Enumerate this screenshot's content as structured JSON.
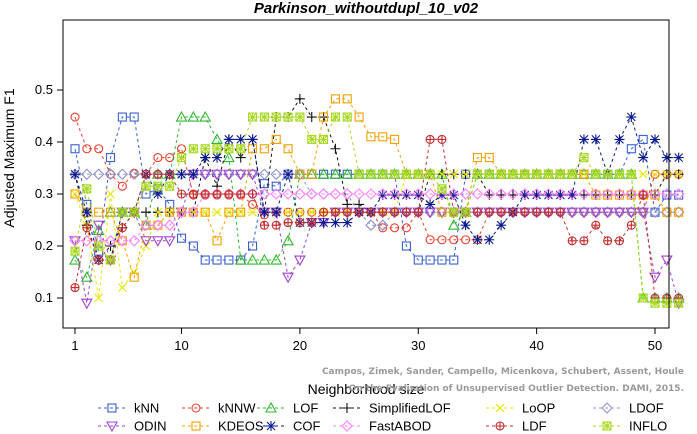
{
  "chart_data": {
    "type": "line",
    "title": "Parkinson_withoutdupl_10_v02",
    "xlabel": "Neighborhood size",
    "ylabel": "Adjusted Maximum F1",
    "xlim": [
      1,
      52
    ],
    "ylim": [
      0.08,
      0.5
    ],
    "xticks": [
      1,
      10,
      20,
      30,
      40,
      50
    ],
    "yticks": [
      0.1,
      0.2,
      0.3,
      0.4,
      0.5
    ],
    "grid": false,
    "legend_position": "bottom",
    "watermark_lines": [
      "Campos, Zimek, Sander, Campello, Micenkova, Schubert, Assent, Houle",
      "On the Evaluation of Unsupervised Outlier Detection. DAMI, 2015."
    ],
    "series": [
      {
        "name": "kNN",
        "color": "#3a5fcd",
        "marker": "square",
        "values": [
          0.387,
          0.28,
          0.19,
          0.37,
          0.448,
          0.448,
          0.3,
          0.31,
          0.28,
          0.215,
          0.2,
          0.173,
          0.173,
          0.173,
          0.173,
          0.2,
          0.32,
          0.315,
          0.338,
          0.338,
          0.338,
          0.338,
          0.338,
          0.338,
          0.338,
          0.338,
          0.338,
          0.338,
          0.2,
          0.173,
          0.173,
          0.173,
          0.173,
          0.338,
          0.338,
          0.338,
          0.338,
          0.338,
          0.338,
          0.338,
          0.338,
          0.338,
          0.338,
          0.338,
          0.338,
          0.338,
          0.338,
          0.387,
          0.405,
          0.265,
          0.298,
          0.298
        ]
      },
      {
        "name": "kNNW",
        "color": "#e8402d",
        "marker": "circle",
        "values": [
          0.448,
          0.387,
          0.387,
          0.338,
          0.315,
          0.34,
          0.338,
          0.37,
          0.37,
          0.387,
          0.298,
          0.298,
          0.298,
          0.298,
          0.298,
          0.28,
          0.26,
          0.265,
          0.265,
          0.265,
          0.265,
          0.265,
          0.265,
          0.265,
          0.265,
          0.265,
          0.235,
          0.235,
          0.235,
          0.265,
          0.212,
          0.212,
          0.212,
          0.212,
          0.212,
          0.265,
          0.265,
          0.265,
          0.265,
          0.265,
          0.265,
          0.265,
          0.265,
          0.265,
          0.265,
          0.265,
          0.265,
          0.265,
          0.265,
          0.338,
          0.338,
          0.338
        ]
      },
      {
        "name": "LOF",
        "color": "#2eb82e",
        "marker": "triangle-up",
        "values": [
          0.173,
          0.14,
          0.23,
          0.265,
          0.265,
          0.265,
          0.24,
          0.338,
          0.338,
          0.448,
          0.448,
          0.448,
          0.405,
          0.37,
          0.173,
          0.173,
          0.173,
          0.173,
          0.21,
          0.338,
          0.338,
          0.338,
          0.338,
          0.338,
          0.338,
          0.338,
          0.338,
          0.338,
          0.338,
          0.338,
          0.338,
          0.338,
          0.24,
          0.265,
          0.338,
          0.338,
          0.338,
          0.338,
          0.338,
          0.338,
          0.338,
          0.338,
          0.338,
          0.338,
          0.338,
          0.338,
          0.338,
          0.338,
          0.1,
          0.1,
          0.1,
          0.1
        ]
      },
      {
        "name": "SimplifiedLOF",
        "color": "#111111",
        "marker": "plus",
        "values": [
          0.338,
          0.24,
          0.173,
          0.2,
          0.235,
          0.265,
          0.265,
          0.265,
          0.265,
          0.265,
          0.265,
          0.37,
          0.315,
          0.405,
          0.37,
          0.405,
          0.265,
          0.448,
          0.448,
          0.483,
          0.448,
          0.448,
          0.387,
          0.28,
          0.28,
          0.265,
          0.265,
          0.265,
          0.265,
          0.265,
          0.338,
          0.338,
          0.338,
          0.338,
          0.338,
          0.298,
          0.298,
          0.298,
          0.298,
          0.298,
          0.298,
          0.298,
          0.298,
          0.298,
          0.298,
          0.298,
          0.298,
          0.298,
          0.298,
          0.298,
          0.338,
          0.338
        ]
      },
      {
        "name": "LoOP",
        "color": "#e6e600",
        "marker": "x",
        "values": [
          0.3,
          0.24,
          0.1,
          0.3,
          0.12,
          0.15,
          0.2,
          0.265,
          0.265,
          0.265,
          0.265,
          0.265,
          0.265,
          0.265,
          0.265,
          0.265,
          0.265,
          0.265,
          0.265,
          0.265,
          0.265,
          0.265,
          0.265,
          0.265,
          0.265,
          0.265,
          0.265,
          0.265,
          0.338,
          0.338,
          0.338,
          0.338,
          0.338,
          0.338,
          0.338,
          0.338,
          0.338,
          0.338,
          0.338,
          0.338,
          0.338,
          0.338,
          0.338,
          0.338,
          0.338,
          0.338,
          0.338,
          0.338,
          0.338,
          0.338,
          0.338,
          0.338
        ]
      },
      {
        "name": "LDOF",
        "color": "#9090cc",
        "marker": "diamond",
        "values": [
          0.338,
          0.338,
          0.338,
          0.338,
          0.338,
          0.338,
          0.338,
          0.338,
          0.338,
          0.338,
          0.338,
          0.338,
          0.338,
          0.338,
          0.338,
          0.338,
          0.338,
          0.338,
          0.338,
          0.338,
          0.3,
          0.3,
          0.3,
          0.3,
          0.265,
          0.24,
          0.24,
          0.265,
          0.265,
          0.265,
          0.265,
          0.265,
          0.265,
          0.265,
          0.265,
          0.265,
          0.265,
          0.265,
          0.265,
          0.265,
          0.265,
          0.265,
          0.265,
          0.265,
          0.265,
          0.265,
          0.265,
          0.265,
          0.265,
          0.265,
          0.265,
          0.265
        ]
      },
      {
        "name": "ODIN",
        "color": "#a040d0",
        "marker": "triangle-down",
        "values": [
          0.21,
          0.09,
          0.24,
          0.173,
          0.265,
          0.265,
          0.21,
          0.21,
          0.21,
          0.265,
          0.338,
          0.338,
          0.338,
          0.338,
          0.338,
          0.338,
          0.265,
          0.265,
          0.14,
          0.173,
          0.245,
          0.245,
          0.265,
          0.265,
          0.265,
          0.265,
          0.265,
          0.265,
          0.265,
          0.265,
          0.265,
          0.265,
          0.265,
          0.265,
          0.265,
          0.265,
          0.265,
          0.265,
          0.265,
          0.265,
          0.265,
          0.265,
          0.265,
          0.265,
          0.265,
          0.265,
          0.265,
          0.265,
          0.265,
          0.14,
          0.173,
          0.09
        ]
      },
      {
        "name": "KDEOS",
        "color": "#f0a000",
        "marker": "square",
        "values": [
          0.3,
          0.265,
          0.265,
          0.265,
          0.21,
          0.14,
          0.24,
          0.24,
          0.265,
          0.265,
          0.265,
          0.265,
          0.21,
          0.265,
          0.265,
          0.387,
          0.387,
          0.405,
          0.387,
          0.338,
          0.338,
          0.448,
          0.483,
          0.483,
          0.448,
          0.41,
          0.41,
          0.405,
          0.338,
          0.338,
          0.338,
          0.265,
          0.265,
          0.265,
          0.37,
          0.37,
          0.338,
          0.338,
          0.338,
          0.338,
          0.338,
          0.338,
          0.338,
          0.338,
          0.298,
          0.298,
          0.298,
          0.298,
          0.298,
          0.298,
          0.265,
          0.265
        ]
      },
      {
        "name": "COF",
        "color": "#0a1a8c",
        "marker": "asterisk",
        "values": [
          0.338,
          0.265,
          0.173,
          0.173,
          0.265,
          0.265,
          0.338,
          0.3,
          0.338,
          0.338,
          0.338,
          0.37,
          0.37,
          0.405,
          0.405,
          0.405,
          0.265,
          0.265,
          0.338,
          0.245,
          0.245,
          0.245,
          0.245,
          0.245,
          0.265,
          0.265,
          0.298,
          0.298,
          0.298,
          0.298,
          0.28,
          0.298,
          0.298,
          0.24,
          0.212,
          0.212,
          0.24,
          0.265,
          0.298,
          0.298,
          0.298,
          0.298,
          0.298,
          0.405,
          0.405,
          0.338,
          0.405,
          0.448,
          0.37,
          0.405,
          0.37,
          0.37
        ]
      },
      {
        "name": "FastABOD",
        "color": "#ff80ff",
        "marker": "diamond",
        "values": [
          0.21,
          0.21,
          0.21,
          0.21,
          0.21,
          0.21,
          0.24,
          0.24,
          0.24,
          0.265,
          0.265,
          0.3,
          0.3,
          0.3,
          0.3,
          0.3,
          0.3,
          0.3,
          0.3,
          0.3,
          0.3,
          0.3,
          0.3,
          0.3,
          0.3,
          0.3,
          0.3,
          0.3,
          0.3,
          0.3,
          0.3,
          0.3,
          0.3,
          0.3,
          0.3,
          0.3,
          0.3,
          0.3,
          0.3,
          0.3,
          0.3,
          0.3,
          0.3,
          0.3,
          0.3,
          0.3,
          0.3,
          0.3,
          0.3,
          0.3,
          0.3,
          0.3
        ]
      },
      {
        "name": "LDF",
        "color": "#c03030",
        "marker": "circle-plus",
        "values": [
          0.12,
          0.235,
          0.173,
          0.173,
          0.235,
          0.265,
          0.338,
          0.338,
          0.338,
          0.3,
          0.3,
          0.3,
          0.3,
          0.3,
          0.3,
          0.3,
          0.24,
          0.24,
          0.245,
          0.245,
          0.245,
          0.265,
          0.265,
          0.265,
          0.265,
          0.265,
          0.265,
          0.265,
          0.265,
          0.265,
          0.405,
          0.405,
          0.265,
          0.265,
          0.265,
          0.265,
          0.265,
          0.265,
          0.265,
          0.265,
          0.265,
          0.265,
          0.21,
          0.21,
          0.24,
          0.21,
          0.21,
          0.24,
          0.298,
          0.1,
          0.1,
          0.1
        ]
      },
      {
        "name": "INFLO",
        "color": "#a8d820",
        "marker": "asterisk-box",
        "values": [
          0.19,
          0.31,
          0.2,
          0.173,
          0.265,
          0.265,
          0.315,
          0.315,
          0.315,
          0.37,
          0.387,
          0.387,
          0.387,
          0.387,
          0.387,
          0.448,
          0.448,
          0.448,
          0.448,
          0.448,
          0.405,
          0.405,
          0.448,
          0.448,
          0.338,
          0.338,
          0.338,
          0.338,
          0.338,
          0.338,
          0.338,
          0.31,
          0.265,
          0.265,
          0.338,
          0.338,
          0.338,
          0.338,
          0.338,
          0.338,
          0.338,
          0.338,
          0.338,
          0.37,
          0.338,
          0.338,
          0.338,
          0.338,
          0.1,
          0.09,
          0.09,
          0.09
        ]
      }
    ]
  }
}
